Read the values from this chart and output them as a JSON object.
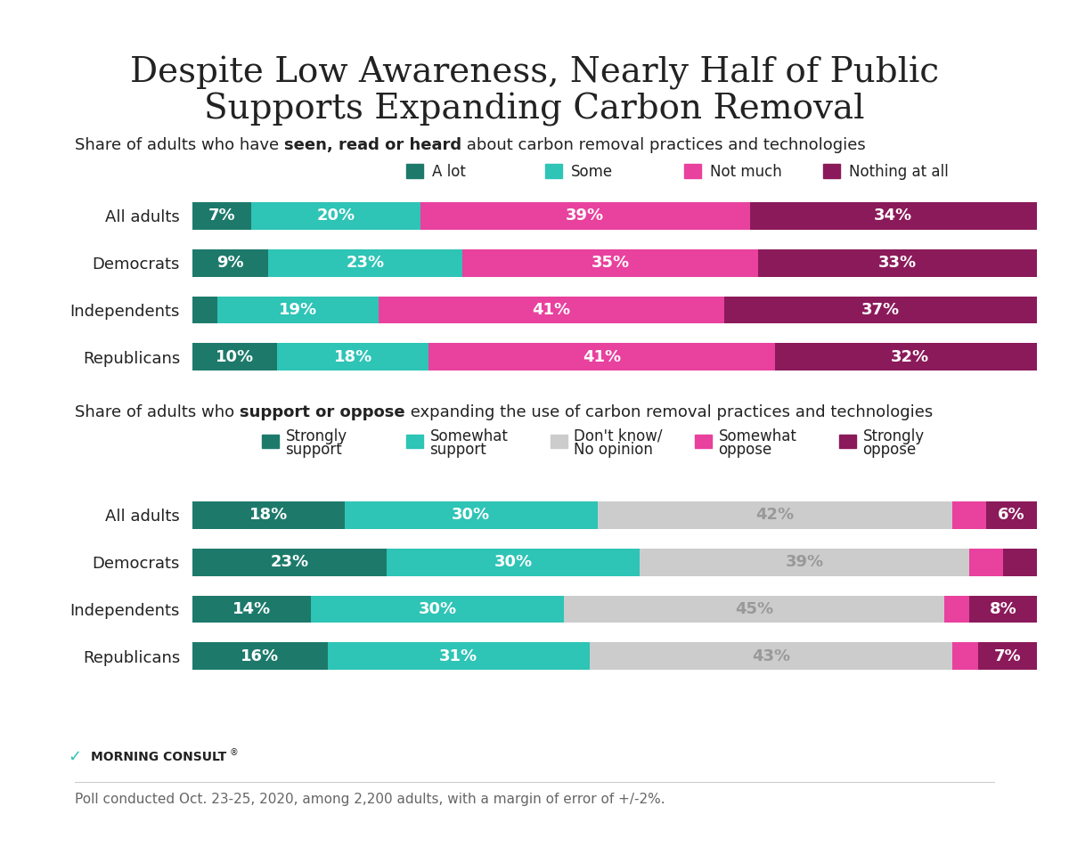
{
  "title_line1": "Despite Low Awareness, Nearly Half of Public",
  "title_line2": "Supports Expanding Carbon Removal",
  "subtitle1_normal1": "Share of adults who have ",
  "subtitle1_bold": "seen, read or heard",
  "subtitle1_normal2": " about carbon removal practices and technologies",
  "subtitle2_normal1": "Share of adults who ",
  "subtitle2_bold": "support or oppose",
  "subtitle2_normal2": " expanding the use of carbon removal practices and technologies",
  "footer": "Poll conducted Oct. 23-25, 2020, among 2,200 adults, with a margin of error of +/-2%.",
  "categories": [
    "All adults",
    "Democrats",
    "Independents",
    "Republicans"
  ],
  "chart1": {
    "labels": [
      "A lot",
      "Some",
      "Not much",
      "Nothing at all"
    ],
    "colors": [
      "#1d7a6b",
      "#2ec4b6",
      "#e8419e",
      "#8b1a5a"
    ],
    "data": [
      [
        7,
        20,
        39,
        34
      ],
      [
        9,
        23,
        35,
        33
      ],
      [
        3,
        19,
        41,
        37
      ],
      [
        10,
        18,
        41,
        32
      ]
    ],
    "label_display": [
      [
        "7%",
        "20%",
        "39%",
        "34%"
      ],
      [
        "9%",
        "23%",
        "35%",
        "33%"
      ],
      [
        "",
        "19%",
        "41%",
        "37%"
      ],
      [
        "10%",
        "18%",
        "41%",
        "32%"
      ]
    ]
  },
  "chart2": {
    "labels": [
      "Strongly\nsupport",
      "Somewhat\nsupport",
      "Don't know/\nNo opinion",
      "Somewhat\noppose",
      "Strongly\noppose"
    ],
    "colors": [
      "#1d7a6b",
      "#2ec4b6",
      "#cccccc",
      "#e8419e",
      "#8b1a5a"
    ],
    "data": [
      [
        18,
        30,
        42,
        4,
        6
      ],
      [
        23,
        30,
        39,
        4,
        4
      ],
      [
        14,
        30,
        45,
        3,
        8
      ],
      [
        16,
        31,
        43,
        3,
        7
      ]
    ],
    "label_display": [
      [
        "18%",
        "30%",
        "42%",
        "",
        "6%"
      ],
      [
        "23%",
        "30%",
        "39%",
        "",
        ""
      ],
      [
        "14%",
        "30%",
        "45%",
        "",
        "8%"
      ],
      [
        "16%",
        "31%",
        "43%",
        "",
        "7%"
      ]
    ]
  },
  "background_color": "#ffffff",
  "bar_height": 0.58,
  "title_fontsize": 28,
  "subtitle_fontsize": 13,
  "label_fontsize": 13,
  "tick_fontsize": 13,
  "legend_fontsize": 12,
  "footer_fontsize": 11,
  "text_color": "#222222",
  "teal_accent": "#2ec4b6",
  "teal_bar_height": 0.007
}
